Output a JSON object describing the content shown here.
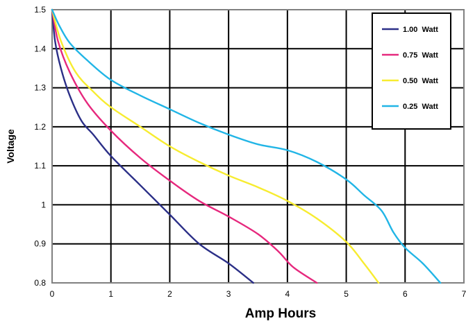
{
  "chart_data": {
    "type": "line",
    "title": "",
    "xlabel": "Amp Hours",
    "ylabel": "Voltage",
    "xlim": [
      0,
      7
    ],
    "ylim": [
      0.8,
      1.5
    ],
    "x_ticks": [
      "0",
      "1",
      "2",
      "3",
      "4",
      "5",
      "6",
      "7"
    ],
    "y_ticks": [
      "0.8",
      "0.9",
      "1",
      "1.1",
      "1.2",
      "1.3",
      "1.4",
      "1.5"
    ],
    "grid": true,
    "legend_position": "top-right",
    "colors": {
      "plot_border": "#808080",
      "grid": "#000000"
    },
    "series": [
      {
        "name": "1.00  Watt",
        "color": "#2b2f87",
        "points": [
          [
            0,
            1.5
          ],
          [
            0.05,
            1.42
          ],
          [
            0.15,
            1.35
          ],
          [
            0.3,
            1.28
          ],
          [
            0.5,
            1.215
          ],
          [
            0.7,
            1.18
          ],
          [
            1,
            1.125
          ],
          [
            1.5,
            1.05
          ],
          [
            2,
            0.975
          ],
          [
            2.5,
            0.9
          ],
          [
            3,
            0.85
          ],
          [
            3.42,
            0.8
          ]
        ]
      },
      {
        "name": "0.75  Watt",
        "color": "#e6287d",
        "points": [
          [
            0,
            1.5
          ],
          [
            0.1,
            1.42
          ],
          [
            0.3,
            1.34
          ],
          [
            0.6,
            1.26
          ],
          [
            1,
            1.19
          ],
          [
            1.5,
            1.12
          ],
          [
            2,
            1.062
          ],
          [
            2.5,
            1.01
          ],
          [
            3,
            0.97
          ],
          [
            3.5,
            0.925
          ],
          [
            3.85,
            0.88
          ],
          [
            4.1,
            0.84
          ],
          [
            4.5,
            0.8
          ]
        ]
      },
      {
        "name": "0.50  Watt",
        "color": "#f7ec30",
        "points": [
          [
            0,
            1.5
          ],
          [
            0.15,
            1.42
          ],
          [
            0.4,
            1.34
          ],
          [
            0.7,
            1.29
          ],
          [
            1,
            1.25
          ],
          [
            1.5,
            1.2
          ],
          [
            2,
            1.15
          ],
          [
            2.5,
            1.11
          ],
          [
            3,
            1.075
          ],
          [
            3.5,
            1.045
          ],
          [
            4,
            1.01
          ],
          [
            4.5,
            0.965
          ],
          [
            5,
            0.905
          ],
          [
            5.3,
            0.85
          ],
          [
            5.55,
            0.8
          ]
        ]
      },
      {
        "name": "0.25  Watt",
        "color": "#21b5e6",
        "points": [
          [
            0,
            1.5
          ],
          [
            0.12,
            1.46
          ],
          [
            0.3,
            1.415
          ],
          [
            0.6,
            1.37
          ],
          [
            1,
            1.32
          ],
          [
            1.5,
            1.28
          ],
          [
            2,
            1.245
          ],
          [
            2.5,
            1.21
          ],
          [
            3,
            1.18
          ],
          [
            3.5,
            1.155
          ],
          [
            4,
            1.14
          ],
          [
            4.5,
            1.11
          ],
          [
            5,
            1.065
          ],
          [
            5.3,
            1.025
          ],
          [
            5.6,
            0.985
          ],
          [
            5.8,
            0.93
          ],
          [
            6,
            0.89
          ],
          [
            6.3,
            0.85
          ],
          [
            6.6,
            0.8
          ]
        ]
      }
    ]
  }
}
